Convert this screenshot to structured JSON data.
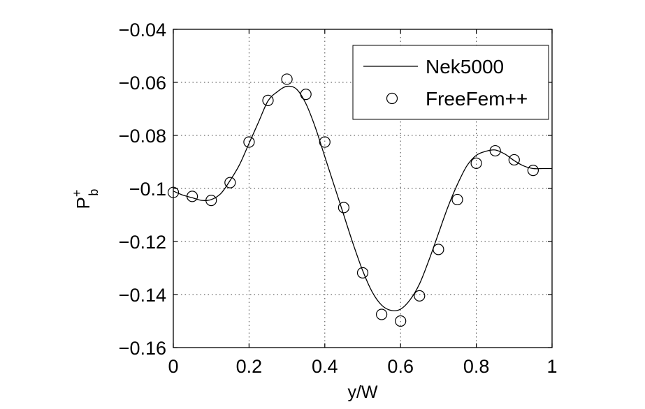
{
  "chart_data": {
    "type": "line",
    "title": "",
    "xlabel": "y/W",
    "ylabel": {
      "main": "P",
      "sup": "+",
      "sub": "b"
    },
    "xlim": [
      0,
      1
    ],
    "ylim": [
      -0.16,
      -0.04
    ],
    "xticks": [
      0,
      0.2,
      0.4,
      0.6,
      0.8,
      1
    ],
    "xtick_labels": [
      "0",
      "0.2",
      "0.4",
      "0.6",
      "0.8",
      "1"
    ],
    "yticks": [
      -0.16,
      -0.14,
      -0.12,
      -0.1,
      -0.08,
      -0.06,
      -0.04
    ],
    "ytick_labels": [
      "−0.16",
      "−0.14",
      "−0.12",
      "−0.1",
      "−0.08",
      "−0.06",
      "−0.04"
    ],
    "grid": true,
    "legend_position": "top-right",
    "series": [
      {
        "name": "Nek5000",
        "style": "line",
        "color": "#000000",
        "x": [
          0,
          0.025,
          0.05,
          0.075,
          0.1,
          0.125,
          0.15,
          0.175,
          0.2,
          0.225,
          0.25,
          0.275,
          0.3,
          0.325,
          0.35,
          0.375,
          0.4,
          0.425,
          0.45,
          0.475,
          0.5,
          0.525,
          0.55,
          0.575,
          0.6,
          0.625,
          0.65,
          0.675,
          0.7,
          0.725,
          0.75,
          0.775,
          0.8,
          0.825,
          0.85,
          0.875,
          0.9,
          0.925,
          0.95,
          0.975,
          1.0
        ],
        "y": [
          -0.101,
          -0.1025,
          -0.1035,
          -0.1045,
          -0.1042,
          -0.102,
          -0.097,
          -0.091,
          -0.083,
          -0.075,
          -0.067,
          -0.0635,
          -0.0615,
          -0.0625,
          -0.068,
          -0.077,
          -0.088,
          -0.099,
          -0.11,
          -0.121,
          -0.131,
          -0.139,
          -0.144,
          -0.146,
          -0.1455,
          -0.142,
          -0.136,
          -0.127,
          -0.117,
          -0.107,
          -0.0985,
          -0.0915,
          -0.0875,
          -0.086,
          -0.0855,
          -0.087,
          -0.0895,
          -0.0915,
          -0.0925,
          -0.0925,
          -0.0925
        ]
      },
      {
        "name": "FreeFem++",
        "style": "markers",
        "marker": "circle",
        "color": "#000000",
        "x": [
          0,
          0.05,
          0.1,
          0.15,
          0.2,
          0.25,
          0.3,
          0.35,
          0.4,
          0.45,
          0.5,
          0.55,
          0.6,
          0.65,
          0.7,
          0.75,
          0.8,
          0.85,
          0.9,
          0.95
        ],
        "y": [
          -0.1015,
          -0.103,
          -0.1045,
          -0.0978,
          -0.0825,
          -0.0668,
          -0.0588,
          -0.0645,
          -0.0825,
          -0.1072,
          -0.1318,
          -0.1475,
          -0.15,
          -0.1405,
          -0.123,
          -0.1042,
          -0.0905,
          -0.0858,
          -0.0892,
          -0.0932
        ]
      }
    ]
  }
}
